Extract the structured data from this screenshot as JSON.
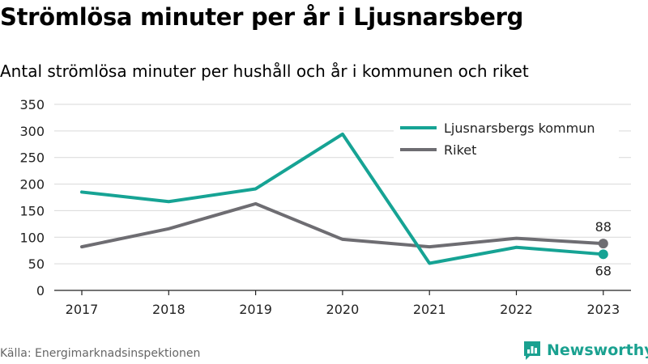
{
  "title": "Strömlösa minuter per år i Ljusnarsberg",
  "subtitle": "Antal strömlösa minuter per hushåll och år i kommunen och riket",
  "source": "Källa: Energimarknadsinspektionen",
  "brand": {
    "name": "Newsworthy",
    "icon": "newsworthy-logo-icon",
    "color": "#1aa190"
  },
  "chart_data": {
    "type": "line",
    "categories": [
      "2017",
      "2018",
      "2019",
      "2020",
      "2021",
      "2022",
      "2023"
    ],
    "series": [
      {
        "name": "Ljusnarsbergs kommun",
        "color": "#16a394",
        "values": [
          185,
          167,
          191,
          294,
          51,
          81,
          68
        ]
      },
      {
        "name": "Riket",
        "color": "#6e6d72",
        "values": [
          82,
          116,
          163,
          96,
          82,
          98,
          88
        ]
      }
    ],
    "end_labels": [
      "68",
      "88"
    ],
    "yticks": [
      "0",
      "50",
      "100",
      "150",
      "200",
      "250",
      "300",
      "350"
    ],
    "ylim": [
      0,
      350
    ],
    "grid": true,
    "legend": "top-right",
    "xlabel": "",
    "ylabel": ""
  }
}
